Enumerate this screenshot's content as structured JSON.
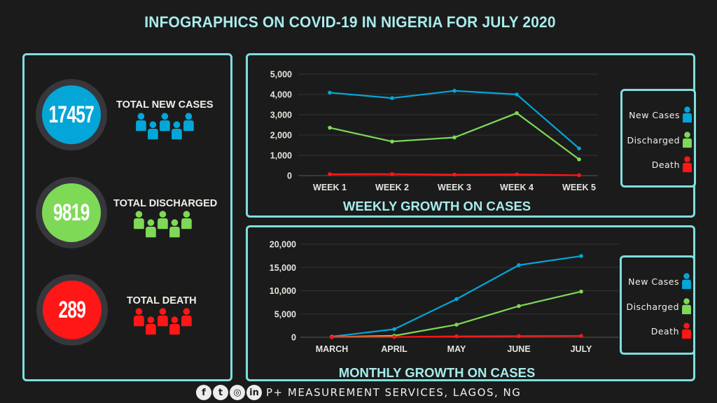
{
  "title": "INFOGRAPHICS ON COVID-19 IN NIGERIA  FOR JULY 2020",
  "colors": {
    "new_cases": "#04a6d8",
    "discharged": "#7ed957",
    "death": "#ff1616",
    "accent": "#7fdede",
    "title": "#a8ecec"
  },
  "stats": [
    {
      "value": "17457",
      "label": "TOTAL NEW CASES",
      "color": "#04a6d8"
    },
    {
      "value": "9819",
      "label": "TOTAL DISCHARGED",
      "color": "#7ed957"
    },
    {
      "value": "289",
      "label": "TOTAL DEATH",
      "color": "#ff1616"
    }
  ],
  "legend": [
    {
      "label": "New Cases",
      "color": "#04a6d8"
    },
    {
      "label": "Discharged",
      "color": "#7ed957"
    },
    {
      "label": "Death",
      "color": "#ff1616"
    }
  ],
  "footer": {
    "social_icons": [
      "facebook-icon",
      "twitter-icon",
      "instagram-icon",
      "linkedin-icon"
    ],
    "social_glyphs": [
      "f",
      "t",
      "◎",
      "in"
    ],
    "text": "P+ MEASUREMENT SERVICES, LAGOS, NG"
  },
  "chart_data": [
    {
      "type": "line",
      "title": "WEEKLY GROWTH ON CASES",
      "xlabel": "",
      "ylabel": "",
      "categories": [
        "WEEK 1",
        "WEEK 2",
        "WEEK 3",
        "WEEK 4",
        "WEEK 5"
      ],
      "ylim": [
        0,
        5000
      ],
      "yticks": [
        0,
        1000,
        2000,
        3000,
        4000,
        5000
      ],
      "ytick_labels": [
        "0",
        "1,000",
        "2,000",
        "3,000",
        "4,000",
        "5,000"
      ],
      "grid": true,
      "legend_position": "right",
      "series": [
        {
          "name": "New Cases",
          "color": "#04a6d8",
          "values": [
            4090,
            3820,
            4180,
            4000,
            1340
          ]
        },
        {
          "name": "Discharged",
          "color": "#7ed957",
          "values": [
            2360,
            1680,
            1880,
            3080,
            800
          ]
        },
        {
          "name": "Death",
          "color": "#ff1616",
          "values": [
            70,
            75,
            50,
            60,
            20
          ]
        }
      ]
    },
    {
      "type": "line",
      "title": "MONTHLY GROWTH ON CASES",
      "xlabel": "",
      "ylabel": "",
      "categories": [
        "MARCH",
        "APRIL",
        "MAY",
        "JUNE",
        "JULY"
      ],
      "ylim": [
        0,
        20000
      ],
      "yticks": [
        0,
        5000,
        10000,
        15000,
        20000
      ],
      "ytick_labels": [
        "0",
        "5,000",
        "10,000",
        "15,000",
        "20,000"
      ],
      "grid": true,
      "legend_position": "right",
      "series": [
        {
          "name": "New Cases",
          "color": "#04a6d8",
          "values": [
            130,
            1730,
            8200,
            15500,
            17457
          ]
        },
        {
          "name": "Discharged",
          "color": "#7ed957",
          "values": [
            40,
            320,
            2700,
            6700,
            9819
          ]
        },
        {
          "name": "Death",
          "color": "#ff1616",
          "values": [
            0,
            50,
            200,
            250,
            289
          ]
        }
      ]
    }
  ]
}
